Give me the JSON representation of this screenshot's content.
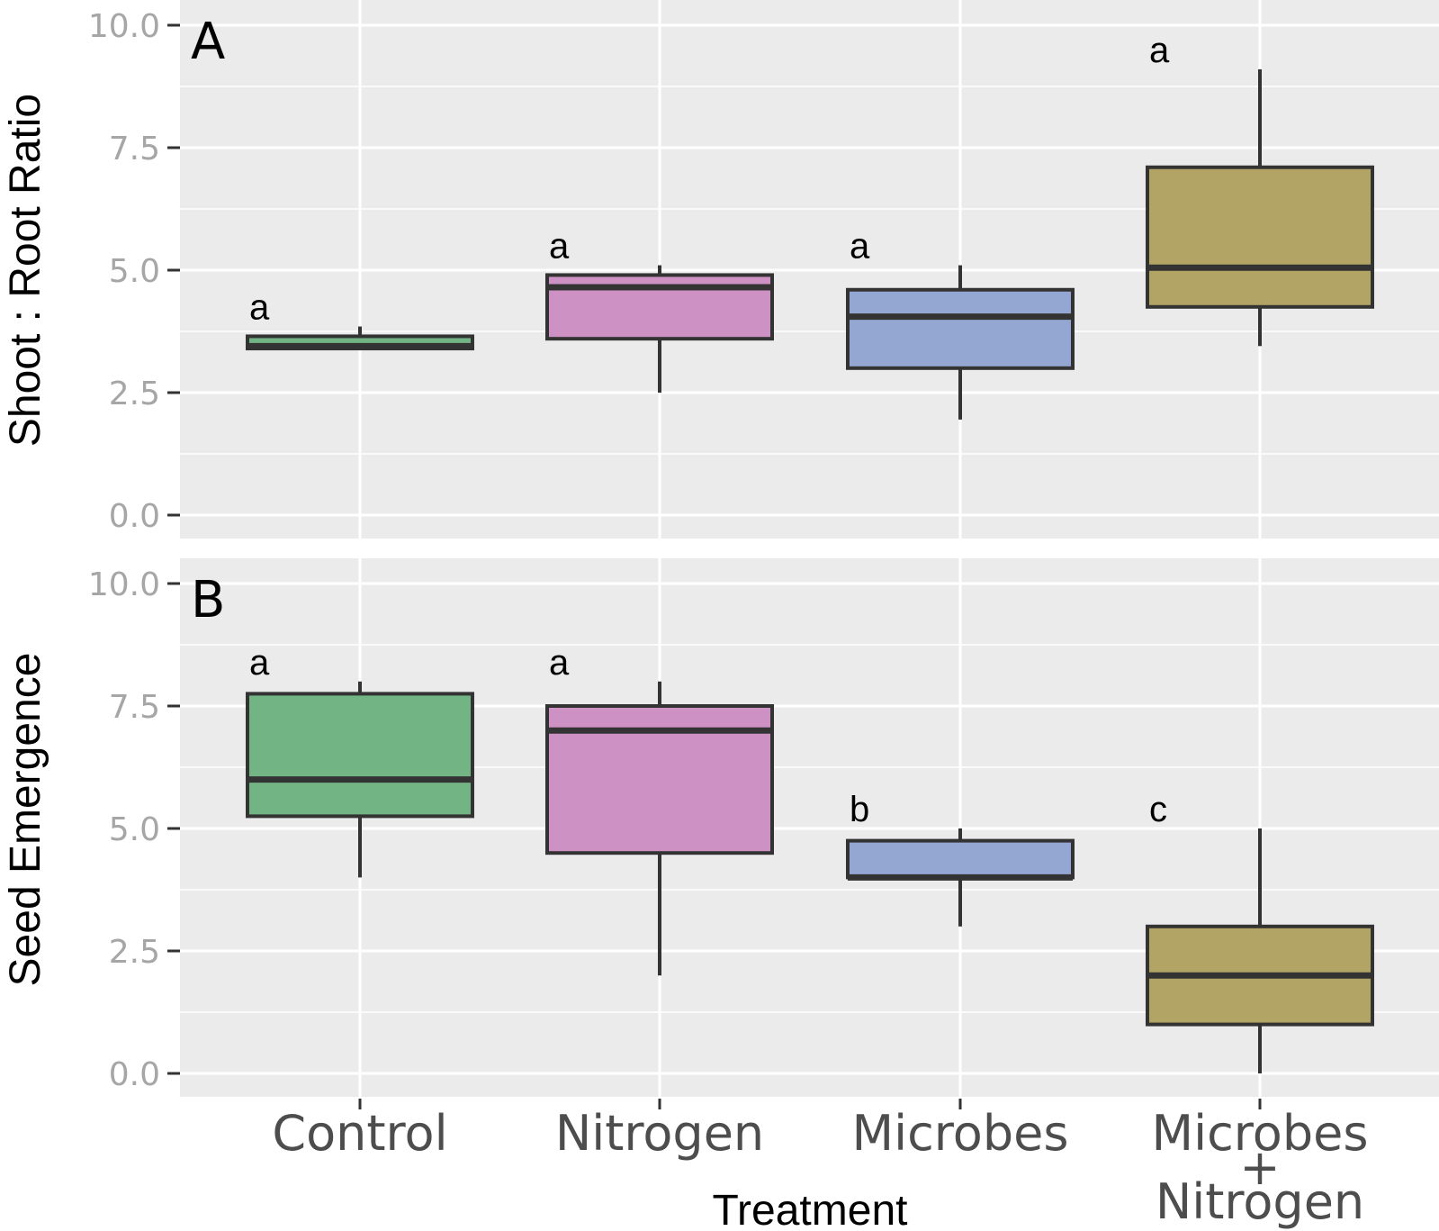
{
  "chart_data": [
    {
      "type": "box",
      "panel_label": "A",
      "ylabel": "Shoot : Root Ratio",
      "xlabel": "",
      "ylim": [
        0,
        10.5
      ],
      "y_ticks": [
        "0.0",
        "2.5",
        "5.0",
        "7.5",
        "10.0"
      ],
      "y_tick_values": [
        0,
        2.5,
        5,
        7.5,
        10
      ],
      "grid": true,
      "boxes": [
        {
          "category": "Control",
          "whisker_low": 3.4,
          "q1": 3.4,
          "median": 3.45,
          "q3": 3.65,
          "whisker_high": 3.85,
          "letter": "a"
        },
        {
          "category": "Nitrogen",
          "whisker_low": 2.5,
          "q1": 3.6,
          "median": 4.65,
          "q3": 4.9,
          "whisker_high": 5.1,
          "letter": "a"
        },
        {
          "category": "Microbes",
          "whisker_low": 1.95,
          "q1": 3.0,
          "median": 4.05,
          "q3": 4.6,
          "whisker_high": 5.1,
          "letter": "a"
        },
        {
          "category": "Microbes + Nitrogen",
          "whisker_low": 3.45,
          "q1": 4.25,
          "median": 5.05,
          "q3": 7.1,
          "whisker_high": 9.1,
          "letter": "a"
        }
      ]
    },
    {
      "type": "box",
      "panel_label": "B",
      "ylabel": "Seed Emergence",
      "xlabel": "Treatment",
      "ylim": [
        0,
        10.5
      ],
      "y_ticks": [
        "0.0",
        "2.5",
        "5.0",
        "7.5",
        "10.0"
      ],
      "y_tick_values": [
        0,
        2.5,
        5,
        7.5,
        10
      ],
      "grid": true,
      "boxes": [
        {
          "category": "Control",
          "whisker_low": 4.0,
          "q1": 5.25,
          "median": 6.0,
          "q3": 7.75,
          "whisker_high": 8.0,
          "letter": "a"
        },
        {
          "category": "Nitrogen",
          "whisker_low": 2.0,
          "q1": 4.5,
          "median": 7.0,
          "q3": 7.5,
          "whisker_high": 8.0,
          "letter": "a"
        },
        {
          "category": "Microbes",
          "whisker_low": 3.0,
          "q1": 4.0,
          "median": 4.0,
          "q3": 4.75,
          "whisker_high": 5.0,
          "letter": "b"
        },
        {
          "category": "Microbes + Nitrogen",
          "whisker_low": 0.0,
          "q1": 1.0,
          "median": 2.0,
          "q3": 3.0,
          "whisker_high": 5.0,
          "letter": "c"
        }
      ]
    }
  ],
  "x_axis": {
    "title": "Treatment",
    "tick_labels": [
      {
        "lines": [
          "Control"
        ]
      },
      {
        "lines": [
          "Nitrogen"
        ]
      },
      {
        "lines": [
          "Microbes"
        ]
      },
      {
        "lines": [
          "Microbes",
          "+",
          "Nitrogen"
        ]
      }
    ]
  },
  "colors": {
    "panel_background": "#ebebeb",
    "grid": "#ffffff",
    "box_outline": "#333333",
    "fills": [
      "#72b483",
      "#cd91c4",
      "#93a7d2",
      "#b2a464"
    ]
  }
}
